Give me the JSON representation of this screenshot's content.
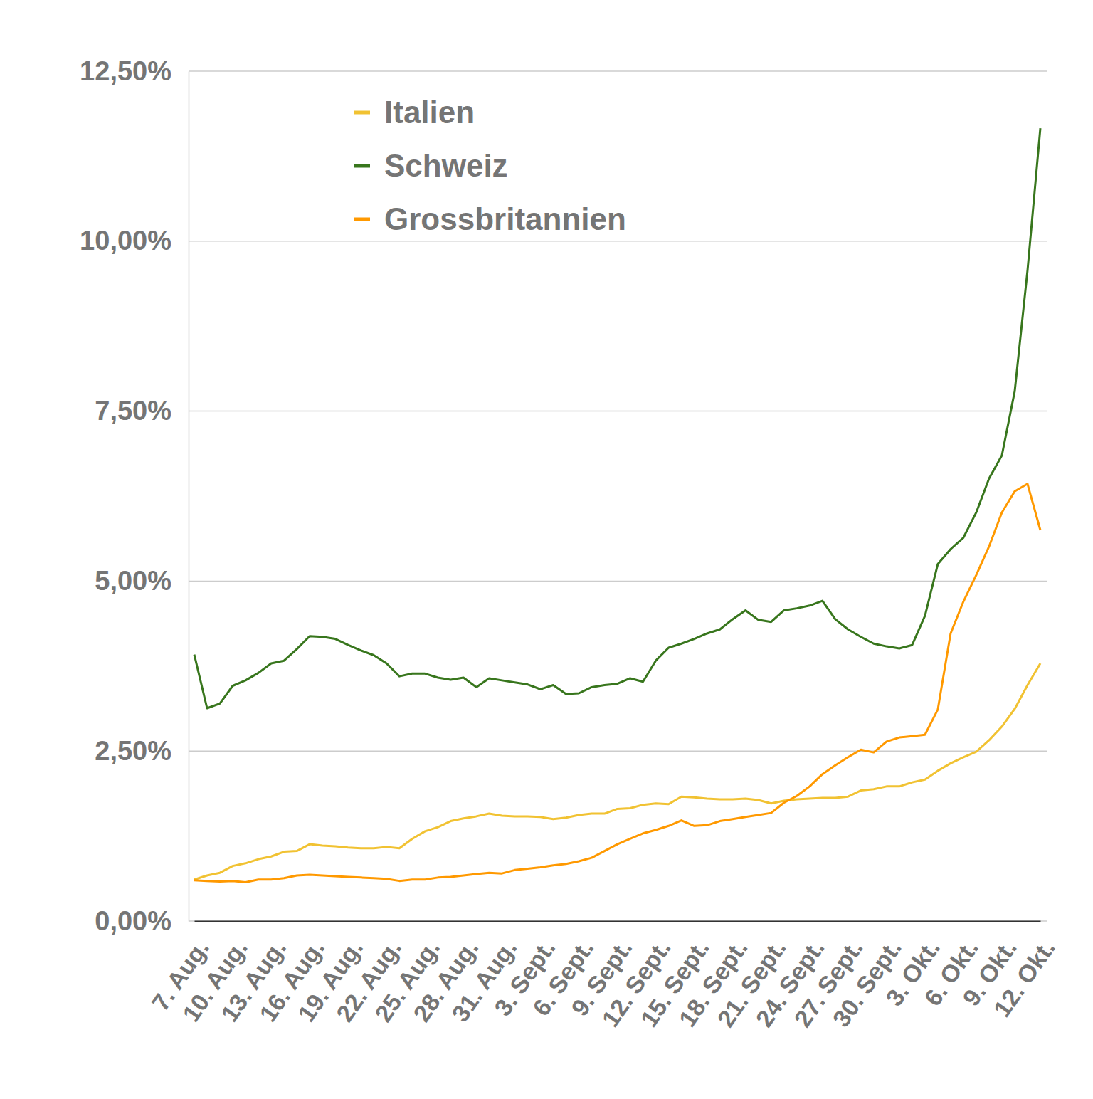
{
  "chart_data": {
    "type": "line",
    "categories": [
      "7. Aug.",
      null,
      null,
      "10. Aug.",
      null,
      null,
      "13. Aug.",
      null,
      null,
      "16. Aug.",
      null,
      null,
      "19. Aug.",
      null,
      null,
      "22. Aug.",
      null,
      null,
      "25. Aug.",
      null,
      null,
      "28. Aug.",
      null,
      null,
      "31. Aug.",
      null,
      null,
      "3. Sept.",
      null,
      null,
      "6. Sept.",
      null,
      null,
      "9. Sept.",
      null,
      null,
      "12. Sept.",
      null,
      null,
      "15. Sept.",
      null,
      null,
      "18. Sept.",
      null,
      null,
      "21. Sept.",
      null,
      null,
      "24. Sept.",
      null,
      null,
      "27. Sept.",
      null,
      null,
      "30. Sept.",
      null,
      null,
      "3. Okt.",
      null,
      null,
      "6. Okt.",
      null,
      null,
      "9. Okt.",
      null,
      null,
      "12. Okt."
    ],
    "series": [
      {
        "name": "Italien",
        "color": "#f1c232",
        "values": [
          0.61,
          0.67,
          0.71,
          0.81,
          0.85,
          0.91,
          0.95,
          1.02,
          1.03,
          1.13,
          1.11,
          1.1,
          1.08,
          1.07,
          1.07,
          1.09,
          1.07,
          1.21,
          1.32,
          1.38,
          1.47,
          1.51,
          1.54,
          1.58,
          1.55,
          1.54,
          1.54,
          1.53,
          1.5,
          1.52,
          1.56,
          1.58,
          1.58,
          1.65,
          1.66,
          1.71,
          1.73,
          1.72,
          1.83,
          1.82,
          1.8,
          1.79,
          1.79,
          1.8,
          1.78,
          1.73,
          1.77,
          1.79,
          1.8,
          1.81,
          1.81,
          1.83,
          1.92,
          1.94,
          1.98,
          1.98,
          2.04,
          2.08,
          2.21,
          2.32,
          2.41,
          2.49,
          2.66,
          2.86,
          3.12,
          3.47,
          3.79
        ]
      },
      {
        "name": "Schweiz",
        "color": "#38761d",
        "values": [
          3.92,
          3.13,
          3.2,
          3.46,
          3.54,
          3.65,
          3.79,
          3.83,
          4.0,
          4.19,
          4.18,
          4.15,
          4.06,
          3.98,
          3.91,
          3.79,
          3.6,
          3.64,
          3.64,
          3.58,
          3.55,
          3.58,
          3.44,
          3.57,
          3.54,
          3.51,
          3.48,
          3.41,
          3.47,
          3.34,
          3.35,
          3.44,
          3.47,
          3.49,
          3.57,
          3.52,
          3.83,
          4.02,
          4.08,
          4.15,
          4.23,
          4.29,
          4.44,
          4.57,
          4.43,
          4.4,
          4.57,
          4.6,
          4.64,
          4.71,
          4.44,
          4.29,
          4.18,
          4.08,
          4.04,
          4.01,
          4.06,
          4.49,
          5.25,
          5.47,
          5.64,
          6.01,
          6.51,
          6.85,
          7.79,
          9.57,
          11.66
        ]
      },
      {
        "name": "Grossbritannien",
        "color": "#ff9900",
        "values": [
          0.6,
          0.59,
          0.58,
          0.59,
          0.57,
          0.61,
          0.61,
          0.63,
          0.67,
          0.68,
          0.67,
          0.66,
          0.65,
          0.64,
          0.63,
          0.62,
          0.59,
          0.61,
          0.61,
          0.64,
          0.65,
          0.67,
          0.69,
          0.71,
          0.7,
          0.75,
          0.77,
          0.79,
          0.82,
          0.84,
          0.88,
          0.93,
          1.03,
          1.13,
          1.21,
          1.29,
          1.34,
          1.4,
          1.48,
          1.4,
          1.41,
          1.47,
          1.5,
          1.53,
          1.56,
          1.59,
          1.74,
          1.84,
          1.98,
          2.16,
          2.29,
          2.41,
          2.52,
          2.48,
          2.64,
          2.7,
          2.72,
          2.74,
          3.11,
          4.23,
          4.7,
          5.09,
          5.51,
          6.01,
          6.32,
          6.43,
          5.75
        ]
      }
    ],
    "ylim": [
      0,
      12.5
    ],
    "yticks": [
      {
        "value": 0,
        "label": "0,00%"
      },
      {
        "value": 2.5,
        "label": "2,50%"
      },
      {
        "value": 5,
        "label": "5,00%"
      },
      {
        "value": 7.5,
        "label": "7,50%"
      },
      {
        "value": 10,
        "label": "10,00%"
      },
      {
        "value": 12.5,
        "label": "12,50%"
      }
    ],
    "grid": true,
    "legend": "top-left"
  }
}
